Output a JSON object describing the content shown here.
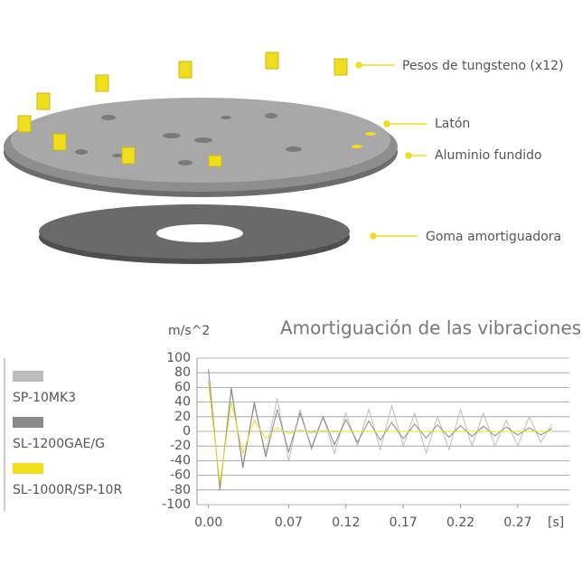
{
  "diagram": {
    "labels": [
      "Pesos de tungsteno (x12)",
      "Latón",
      "Aluminio fundido",
      "Goma amortiguadora"
    ]
  },
  "chart_data": {
    "type": "line",
    "title": "Amortiguación de las vibraciones",
    "ylabel": "m/s^2",
    "xlabel": "[s]",
    "x": [
      0,
      0.01,
      0.02,
      0.03,
      0.04,
      0.05,
      0.06,
      0.07,
      0.08,
      0.09,
      0.1,
      0.11,
      0.12,
      0.13,
      0.14,
      0.15,
      0.16,
      0.17,
      0.18,
      0.19,
      0.2,
      0.21,
      0.22,
      0.23,
      0.24,
      0.25,
      0.26,
      0.27,
      0.28,
      0.29,
      0.3
    ],
    "series": [
      {
        "name": "SP-10MK3",
        "color": "#bdbdbd",
        "values": [
          70,
          -75,
          55,
          -45,
          35,
          -30,
          45,
          -40,
          30,
          -25,
          20,
          -30,
          25,
          -20,
          30,
          -25,
          35,
          -20,
          25,
          -30,
          20,
          -25,
          30,
          -20,
          25,
          -20,
          15,
          -20,
          20,
          -15,
          10
        ]
      },
      {
        "name": "SL-1200GAE/G",
        "color": "#8a8a8a",
        "values": [
          85,
          -80,
          60,
          -50,
          40,
          -35,
          30,
          -28,
          25,
          -22,
          20,
          -18,
          16,
          -15,
          14,
          -12,
          12,
          -10,
          10,
          -9,
          9,
          -8,
          8,
          -7,
          7,
          -6,
          6,
          -5,
          5,
          -5,
          4
        ]
      },
      {
        "name": "SL-1000R/SP-10R",
        "color": "#f0de1e",
        "values": [
          65,
          -70,
          40,
          -30,
          15,
          -10,
          5,
          -3,
          2,
          -2,
          1,
          -1,
          0,
          0,
          0,
          0,
          0,
          0,
          0,
          0,
          0,
          0,
          0,
          0,
          0,
          0,
          0,
          0,
          0,
          0,
          0
        ]
      }
    ],
    "xlim": [
      -0.01,
      0.315
    ],
    "ylim": [
      -100,
      100
    ],
    "xticks": [
      {
        "value": 0,
        "label": "0.00"
      },
      {
        "value": 0.07,
        "label": "0.07"
      },
      {
        "value": 0.12,
        "label": "0.12"
      },
      {
        "value": 0.17,
        "label": "0.17"
      },
      {
        "value": 0.22,
        "label": "0.22"
      },
      {
        "value": 0.27,
        "label": "0.27"
      }
    ],
    "yticks": [
      -100,
      -80,
      -60,
      -40,
      -20,
      0,
      20,
      40,
      60,
      80,
      100
    ],
    "grid": true
  }
}
